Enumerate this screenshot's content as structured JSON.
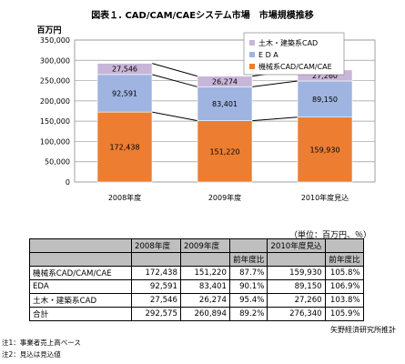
{
  "title": "図表１. CAD/CAM/CAEシステム市場　市場規模推移",
  "chart_data": {
    "type": "bar",
    "stacked": true,
    "ylabel": "百万円",
    "ylim": [
      0,
      350000
    ],
    "yticks": [
      0,
      50000,
      100000,
      150000,
      200000,
      250000,
      300000,
      350000
    ],
    "ytick_labels": [
      "0",
      "50,000",
      "100,000",
      "150,000",
      "200,000",
      "250,000",
      "300,000",
      "350,000"
    ],
    "categories": [
      "2008年度",
      "2009年度",
      "2010年度見込"
    ],
    "series": [
      {
        "name": "機械系CAD/CAM/CAE",
        "values": [
          172438,
          151220,
          159930
        ],
        "labels": [
          "172,438",
          "151,220",
          "159,930"
        ],
        "color": "#ed7d31"
      },
      {
        "name": "E D A",
        "values": [
          92591,
          83401,
          89150
        ],
        "labels": [
          "92,591",
          "83,401",
          "89,150"
        ],
        "color": "#9fb4e0"
      },
      {
        "name": "土木・建築系CAD",
        "values": [
          27546,
          26274,
          27260
        ],
        "labels": [
          "27,546",
          "26,274",
          "27,260"
        ],
        "color": "#c8b6d8"
      }
    ],
    "legend_position": "top-right",
    "grid": true,
    "series_lines": true
  },
  "table": {
    "unit_note": "（単位：百万円、％）",
    "header_top": [
      "",
      "2008年度",
      "2009年度",
      "",
      "2010年度見込",
      ""
    ],
    "header_sub": [
      "",
      "",
      "",
      "前年度比",
      "",
      "前年度比"
    ],
    "rows": [
      [
        "機械系CAD/CAM/CAE",
        "172,438",
        "151,220",
        "87.7%",
        "159,930",
        "105.8%"
      ],
      [
        "EDA",
        "92,591",
        "83,401",
        "90.1%",
        "89,150",
        "106.9%"
      ],
      [
        "土木・建築系CAD",
        "27,546",
        "26,274",
        "95.4%",
        "27,260",
        "103.8%"
      ],
      [
        "合計",
        "292,575",
        "260,894",
        "89.2%",
        "276,340",
        "105.9%"
      ]
    ]
  },
  "source": "矢野経済研究所推計",
  "notes": [
    "注1：事業者売上高ベース",
    "注2：見込は見込値"
  ]
}
